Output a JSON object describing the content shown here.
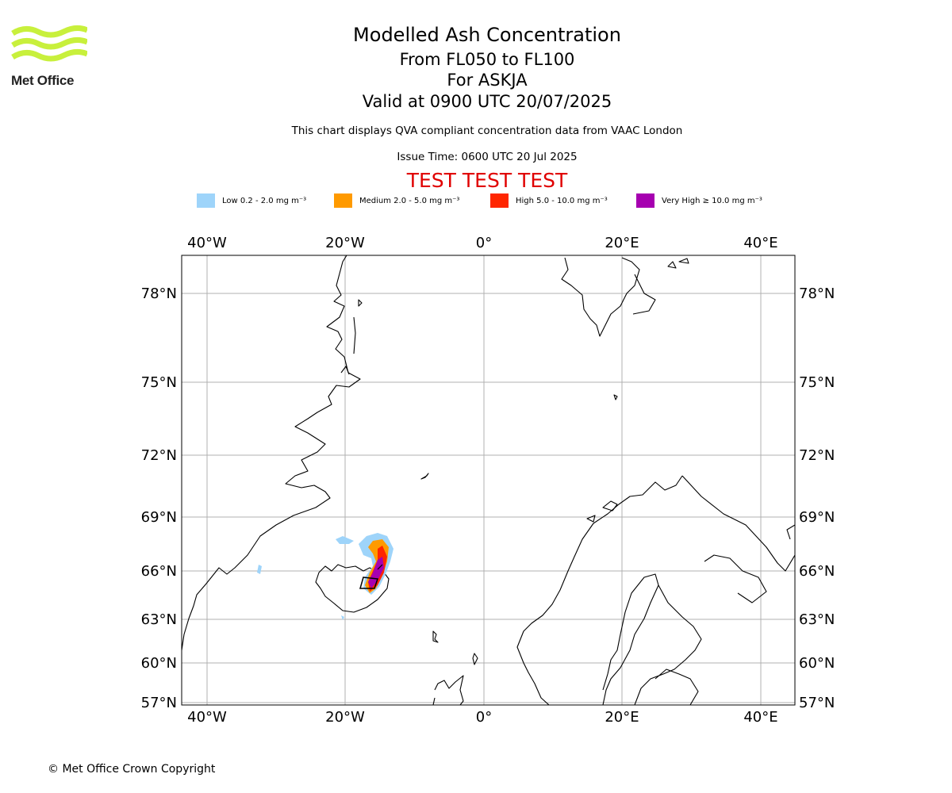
{
  "logo": {
    "text": "Met Office"
  },
  "titles": {
    "line1": "Modelled Ash Concentration",
    "line2": "From FL050 to FL100",
    "line3": "For ASKJA",
    "line4": "Valid at 0900 UTC 20/07/2025",
    "description": "This chart displays QVA compliant concentration data from VAAC London",
    "issue_time": "Issue Time: 0600 UTC 20 Jul 2025",
    "test_banner": "TEST TEST TEST"
  },
  "legend": [
    {
      "label": "Low 0.2 - 2.0 mg m⁻³",
      "color": "#9ed4fa"
    },
    {
      "label": "Medium 2.0 - 5.0 mg m⁻³",
      "color": "#ff9a00"
    },
    {
      "label": "High 5.0 - 10.0 mg m⁻³",
      "color": "#ff2600"
    },
    {
      "label": "Very High ≥ 10.0 mg m⁻³",
      "color": "#a600b0"
    }
  ],
  "map": {
    "lon_labels": [
      "40°W",
      "20°W",
      "0°",
      "20°E",
      "40°E"
    ],
    "lat_labels": [
      "78°N",
      "75°N",
      "72°N",
      "69°N",
      "66°N",
      "63°N",
      "60°N",
      "57°N"
    ],
    "volcano": "ASKJA"
  },
  "footer": {
    "copyright": "© Met Office Crown Copyright"
  }
}
